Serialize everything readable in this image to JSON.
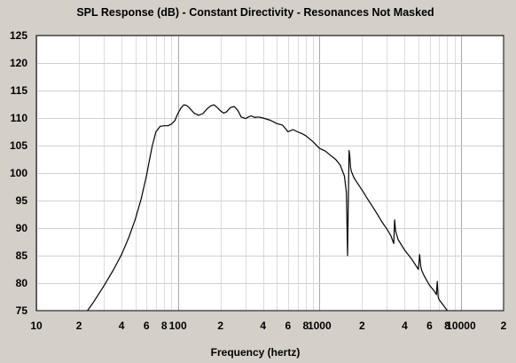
{
  "chart_data": {
    "type": "line",
    "title": "SPL Response (dB) - Constant Directivity - Resonances Not Masked",
    "xlabel": "Frequency (hertz)",
    "ylabel": "",
    "x_scale": "log",
    "xlim": [
      10,
      20000
    ],
    "ylim": [
      75,
      125
    ],
    "grid": true,
    "x_tick_labels": [
      {
        "value": 10,
        "label": "10"
      },
      {
        "value": 20,
        "label": "2"
      },
      {
        "value": 40,
        "label": "4"
      },
      {
        "value": 60,
        "label": "6"
      },
      {
        "value": 80,
        "label": "8"
      },
      {
        "value": 100,
        "label": "100"
      },
      {
        "value": 200,
        "label": "2"
      },
      {
        "value": 400,
        "label": "4"
      },
      {
        "value": 600,
        "label": "6"
      },
      {
        "value": 800,
        "label": "8"
      },
      {
        "value": 1000,
        "label": "1000"
      },
      {
        "value": 2000,
        "label": "2"
      },
      {
        "value": 4000,
        "label": "4"
      },
      {
        "value": 6000,
        "label": "6"
      },
      {
        "value": 8000,
        "label": "8"
      },
      {
        "value": 10000,
        "label": "10000"
      },
      {
        "value": 20000,
        "label": "2"
      }
    ],
    "y_tick_labels": [
      {
        "value": 125,
        "label": "125"
      },
      {
        "value": 120,
        "label": "120"
      },
      {
        "value": 115,
        "label": "115"
      },
      {
        "value": 110,
        "label": "110"
      },
      {
        "value": 105,
        "label": "105"
      },
      {
        "value": 100,
        "label": "100"
      },
      {
        "value": 95,
        "label": "95"
      },
      {
        "value": 90,
        "label": "90"
      },
      {
        "value": 85,
        "label": "85"
      },
      {
        "value": 80,
        "label": "80"
      },
      {
        "value": 75,
        "label": "75"
      }
    ],
    "series": [
      {
        "color": "#000000",
        "x": [
          23,
          25,
          30,
          35,
          40,
          45,
          50,
          55,
          60,
          63,
          66,
          70,
          75,
          80,
          85,
          90,
          95,
          100,
          105,
          110,
          115,
          120,
          130,
          140,
          150,
          160,
          170,
          180,
          190,
          200,
          210,
          220,
          235,
          250,
          265,
          280,
          300,
          315,
          330,
          350,
          370,
          400,
          450,
          500,
          550,
          600,
          650,
          700,
          750,
          800,
          900,
          1000,
          1100,
          1200,
          1300,
          1400,
          1500,
          1550,
          1580,
          1600,
          1620,
          1640,
          1660,
          1680,
          1700,
          1750,
          1800,
          2000,
          2200,
          2500,
          2800,
          3000,
          3200,
          3350,
          3400,
          3450,
          3500,
          3600,
          4000,
          4500,
          5000,
          5100,
          5200,
          5300,
          5500,
          6000,
          6500,
          6700,
          6800,
          6900,
          7000,
          7500,
          8000
        ],
        "y": [
          75,
          76.3,
          79.5,
          82.4,
          85.2,
          88.3,
          91.6,
          95.3,
          99.5,
          102.4,
          105,
          107.5,
          108.5,
          108.6,
          108.6,
          108.9,
          109.5,
          110.8,
          111.8,
          112.4,
          112.3,
          111.9,
          110.9,
          110.5,
          110.8,
          111.6,
          112.2,
          112.4,
          111.9,
          111.3,
          110.9,
          111.1,
          111.9,
          112.1,
          111.4,
          110.2,
          109.9,
          110.2,
          110.4,
          110.1,
          110.2,
          110,
          109.6,
          109,
          108.7,
          107.5,
          107.9,
          107.5,
          107.2,
          106.8,
          105.7,
          104.5,
          104,
          103.2,
          102.5,
          101.5,
          99.5,
          96.5,
          85,
          95,
          104.1,
          103,
          101,
          100.3,
          100,
          99.2,
          98.7,
          96.9,
          95.2,
          93,
          90.9,
          89.8,
          88.6,
          87.2,
          91.5,
          89.5,
          88.9,
          87.9,
          86,
          84.3,
          82.5,
          85.2,
          83,
          82.2,
          81.3,
          79.6,
          78.5,
          77.9,
          80.3,
          77.5,
          77,
          76,
          75
        ]
      }
    ]
  }
}
